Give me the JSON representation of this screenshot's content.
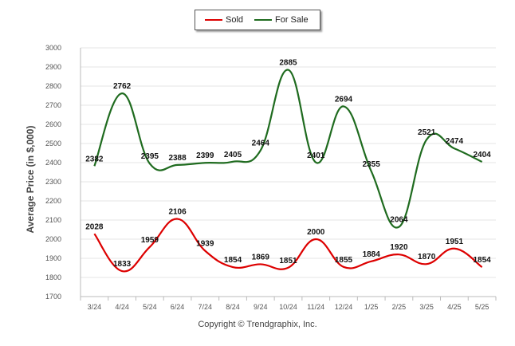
{
  "chart_data": {
    "type": "line",
    "categories": [
      "3/24",
      "4/24",
      "5/24",
      "6/24",
      "7/24",
      "8/24",
      "9/24",
      "10/24",
      "11/24",
      "12/24",
      "1/25",
      "2/25",
      "3/25",
      "4/25",
      "5/25"
    ],
    "series": [
      {
        "name": "Sold",
        "color": "#dd0000",
        "values": [
          2028,
          1833,
          1959,
          2106,
          1939,
          1854,
          1869,
          1851,
          2000,
          1855,
          1884,
          1920,
          1870,
          1951,
          1854
        ]
      },
      {
        "name": "For Sale",
        "color": "#1f6b1f",
        "values": [
          2382,
          2762,
          2395,
          2388,
          2399,
          2405,
          2464,
          2885,
          2401,
          2694,
          2355,
          2064,
          2521,
          2474,
          2404
        ]
      }
    ],
    "ylabel": "Average Price (in $,000)",
    "ylim": [
      1700,
      3000
    ],
    "yticks": [
      1700,
      1800,
      1900,
      2000,
      2100,
      2200,
      2300,
      2400,
      2500,
      2600,
      2700,
      2800,
      2900,
      3000
    ],
    "grid": true,
    "legend_position": "top-center"
  },
  "legend": {
    "sold_label": "Sold",
    "for_sale_label": "For Sale"
  },
  "footer": {
    "copyright": "Copyright © Trendgraphix, Inc."
  }
}
